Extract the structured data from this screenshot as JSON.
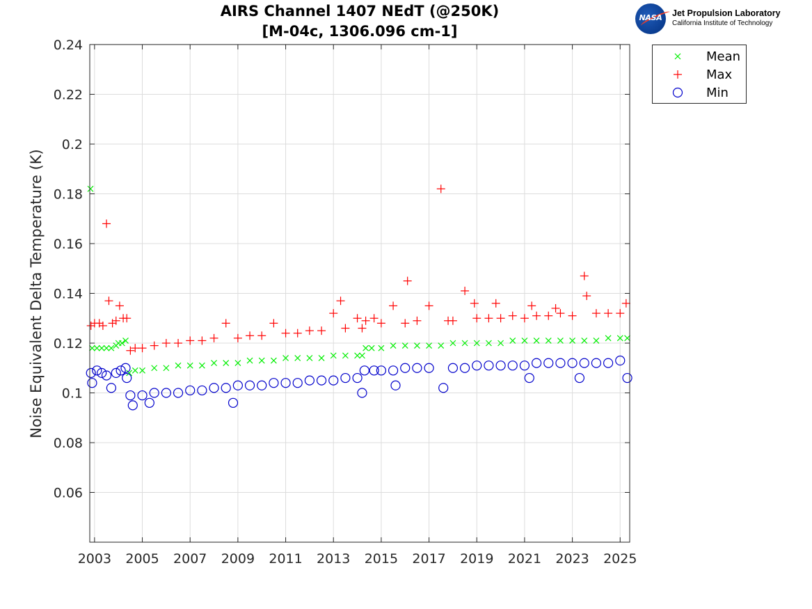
{
  "chart_data": {
    "type": "scatter",
    "title": "AIRS Channel 1407 NEdT (@250K)",
    "subtitle": "[M-04c, 1306.096 cm-1]",
    "xlabel": "",
    "ylabel": "Noise Equivalent Delta Temperature (K)",
    "xlim": [
      2002.8,
      2025.4
    ],
    "ylim": [
      0.04,
      0.24
    ],
    "x_ticks": [
      "2003",
      "2005",
      "2007",
      "2009",
      "2011",
      "2013",
      "2015",
      "2017",
      "2019",
      "2021",
      "2023",
      "2025"
    ],
    "y_ticks": [
      "0.06",
      "0.08",
      "0.1",
      "0.12",
      "0.14",
      "0.16",
      "0.18",
      "0.2",
      "0.22",
      "0.24"
    ],
    "grid": true,
    "legend_position": "outside-top-right",
    "series": [
      {
        "name": "Mean",
        "marker": "x",
        "color": "#00ee00",
        "points": [
          [
            2002.83,
            0.182
          ],
          [
            2002.9,
            0.118
          ],
          [
            2003.1,
            0.118
          ],
          [
            2003.3,
            0.118
          ],
          [
            2003.5,
            0.118
          ],
          [
            2003.7,
            0.118
          ],
          [
            2003.9,
            0.119
          ],
          [
            2004.0,
            0.12
          ],
          [
            2004.15,
            0.12
          ],
          [
            2004.3,
            0.121
          ],
          [
            2004.45,
            0.108
          ],
          [
            2004.7,
            0.109
          ],
          [
            2005.0,
            0.109
          ],
          [
            2005.5,
            0.11
          ],
          [
            2006.0,
            0.11
          ],
          [
            2006.5,
            0.111
          ],
          [
            2007.0,
            0.111
          ],
          [
            2007.5,
            0.111
          ],
          [
            2008.0,
            0.112
          ],
          [
            2008.5,
            0.112
          ],
          [
            2009.0,
            0.112
          ],
          [
            2009.5,
            0.113
          ],
          [
            2010.0,
            0.113
          ],
          [
            2010.5,
            0.113
          ],
          [
            2011.0,
            0.114
          ],
          [
            2011.5,
            0.114
          ],
          [
            2012.0,
            0.114
          ],
          [
            2012.5,
            0.114
          ],
          [
            2013.0,
            0.115
          ],
          [
            2013.5,
            0.115
          ],
          [
            2014.0,
            0.115
          ],
          [
            2014.2,
            0.115
          ],
          [
            2014.35,
            0.118
          ],
          [
            2014.6,
            0.118
          ],
          [
            2015.0,
            0.118
          ],
          [
            2015.5,
            0.119
          ],
          [
            2016.0,
            0.119
          ],
          [
            2016.5,
            0.119
          ],
          [
            2017.0,
            0.119
          ],
          [
            2017.5,
            0.119
          ],
          [
            2018.0,
            0.12
          ],
          [
            2018.5,
            0.12
          ],
          [
            2019.0,
            0.12
          ],
          [
            2019.5,
            0.12
          ],
          [
            2020.0,
            0.12
          ],
          [
            2020.5,
            0.121
          ],
          [
            2021.0,
            0.121
          ],
          [
            2021.5,
            0.121
          ],
          [
            2022.0,
            0.121
          ],
          [
            2022.5,
            0.121
          ],
          [
            2023.0,
            0.121
          ],
          [
            2023.5,
            0.121
          ],
          [
            2024.0,
            0.121
          ],
          [
            2024.5,
            0.122
          ],
          [
            2025.0,
            0.122
          ],
          [
            2025.3,
            0.122
          ]
        ]
      },
      {
        "name": "Max",
        "marker": "+",
        "color": "#ff0000",
        "points": [
          [
            2002.85,
            0.127
          ],
          [
            2003.0,
            0.128
          ],
          [
            2003.2,
            0.128
          ],
          [
            2003.35,
            0.127
          ],
          [
            2003.5,
            0.168
          ],
          [
            2003.6,
            0.137
          ],
          [
            2003.75,
            0.128
          ],
          [
            2003.9,
            0.129
          ],
          [
            2004.05,
            0.135
          ],
          [
            2004.2,
            0.13
          ],
          [
            2004.35,
            0.13
          ],
          [
            2004.5,
            0.117
          ],
          [
            2004.7,
            0.118
          ],
          [
            2005.0,
            0.118
          ],
          [
            2005.5,
            0.119
          ],
          [
            2006.0,
            0.12
          ],
          [
            2006.5,
            0.12
          ],
          [
            2007.0,
            0.121
          ],
          [
            2007.5,
            0.121
          ],
          [
            2008.0,
            0.122
          ],
          [
            2008.5,
            0.128
          ],
          [
            2009.0,
            0.122
          ],
          [
            2009.5,
            0.123
          ],
          [
            2010.0,
            0.123
          ],
          [
            2010.5,
            0.128
          ],
          [
            2011.0,
            0.124
          ],
          [
            2011.5,
            0.124
          ],
          [
            2012.0,
            0.125
          ],
          [
            2012.5,
            0.125
          ],
          [
            2013.0,
            0.132
          ],
          [
            2013.3,
            0.137
          ],
          [
            2013.5,
            0.126
          ],
          [
            2014.0,
            0.13
          ],
          [
            2014.2,
            0.126
          ],
          [
            2014.35,
            0.129
          ],
          [
            2014.7,
            0.13
          ],
          [
            2015.0,
            0.128
          ],
          [
            2015.5,
            0.135
          ],
          [
            2016.0,
            0.128
          ],
          [
            2016.1,
            0.145
          ],
          [
            2016.5,
            0.129
          ],
          [
            2017.0,
            0.135
          ],
          [
            2017.5,
            0.182
          ],
          [
            2017.8,
            0.129
          ],
          [
            2018.0,
            0.129
          ],
          [
            2018.5,
            0.141
          ],
          [
            2018.9,
            0.136
          ],
          [
            2019.0,
            0.13
          ],
          [
            2019.5,
            0.13
          ],
          [
            2019.8,
            0.136
          ],
          [
            2020.0,
            0.13
          ],
          [
            2020.5,
            0.131
          ],
          [
            2021.0,
            0.13
          ],
          [
            2021.3,
            0.135
          ],
          [
            2021.5,
            0.131
          ],
          [
            2022.0,
            0.131
          ],
          [
            2022.3,
            0.134
          ],
          [
            2022.5,
            0.132
          ],
          [
            2023.0,
            0.131
          ],
          [
            2023.5,
            0.147
          ],
          [
            2023.6,
            0.139
          ],
          [
            2024.0,
            0.132
          ],
          [
            2024.5,
            0.132
          ],
          [
            2025.0,
            0.132
          ],
          [
            2025.25,
            0.136
          ]
        ]
      },
      {
        "name": "Min",
        "marker": "o",
        "color": "#0000cc",
        "points": [
          [
            2002.85,
            0.108
          ],
          [
            2002.9,
            0.104
          ],
          [
            2003.1,
            0.109
          ],
          [
            2003.3,
            0.108
          ],
          [
            2003.5,
            0.107
          ],
          [
            2003.7,
            0.102
          ],
          [
            2003.9,
            0.108
          ],
          [
            2004.1,
            0.109
          ],
          [
            2004.3,
            0.11
          ],
          [
            2004.35,
            0.106
          ],
          [
            2004.5,
            0.099
          ],
          [
            2004.6,
            0.095
          ],
          [
            2005.0,
            0.099
          ],
          [
            2005.3,
            0.096
          ],
          [
            2005.5,
            0.1
          ],
          [
            2006.0,
            0.1
          ],
          [
            2006.5,
            0.1
          ],
          [
            2007.0,
            0.101
          ],
          [
            2007.5,
            0.101
          ],
          [
            2008.0,
            0.102
          ],
          [
            2008.5,
            0.102
          ],
          [
            2008.8,
            0.096
          ],
          [
            2009.0,
            0.103
          ],
          [
            2009.5,
            0.103
          ],
          [
            2010.0,
            0.103
          ],
          [
            2010.5,
            0.104
          ],
          [
            2011.0,
            0.104
          ],
          [
            2011.5,
            0.104
          ],
          [
            2012.0,
            0.105
          ],
          [
            2012.5,
            0.105
          ],
          [
            2013.0,
            0.105
          ],
          [
            2013.5,
            0.106
          ],
          [
            2014.0,
            0.106
          ],
          [
            2014.2,
            0.1
          ],
          [
            2014.3,
            0.109
          ],
          [
            2014.7,
            0.109
          ],
          [
            2015.0,
            0.109
          ],
          [
            2015.5,
            0.109
          ],
          [
            2015.6,
            0.103
          ],
          [
            2016.0,
            0.11
          ],
          [
            2016.5,
            0.11
          ],
          [
            2017.0,
            0.11
          ],
          [
            2017.6,
            0.102
          ],
          [
            2018.0,
            0.11
          ],
          [
            2018.5,
            0.11
          ],
          [
            2019.0,
            0.111
          ],
          [
            2019.5,
            0.111
          ],
          [
            2020.0,
            0.111
          ],
          [
            2020.5,
            0.111
          ],
          [
            2021.0,
            0.111
          ],
          [
            2021.2,
            0.106
          ],
          [
            2021.5,
            0.112
          ],
          [
            2022.0,
            0.112
          ],
          [
            2022.5,
            0.112
          ],
          [
            2023.0,
            0.112
          ],
          [
            2023.3,
            0.106
          ],
          [
            2023.5,
            0.112
          ],
          [
            2024.0,
            0.112
          ],
          [
            2024.5,
            0.112
          ],
          [
            2025.0,
            0.113
          ],
          [
            2025.3,
            0.106
          ]
        ]
      }
    ]
  },
  "logo": {
    "seal_text": "NASA",
    "line1": "Jet Propulsion Laboratory",
    "line2": "California Institute of Technology"
  }
}
